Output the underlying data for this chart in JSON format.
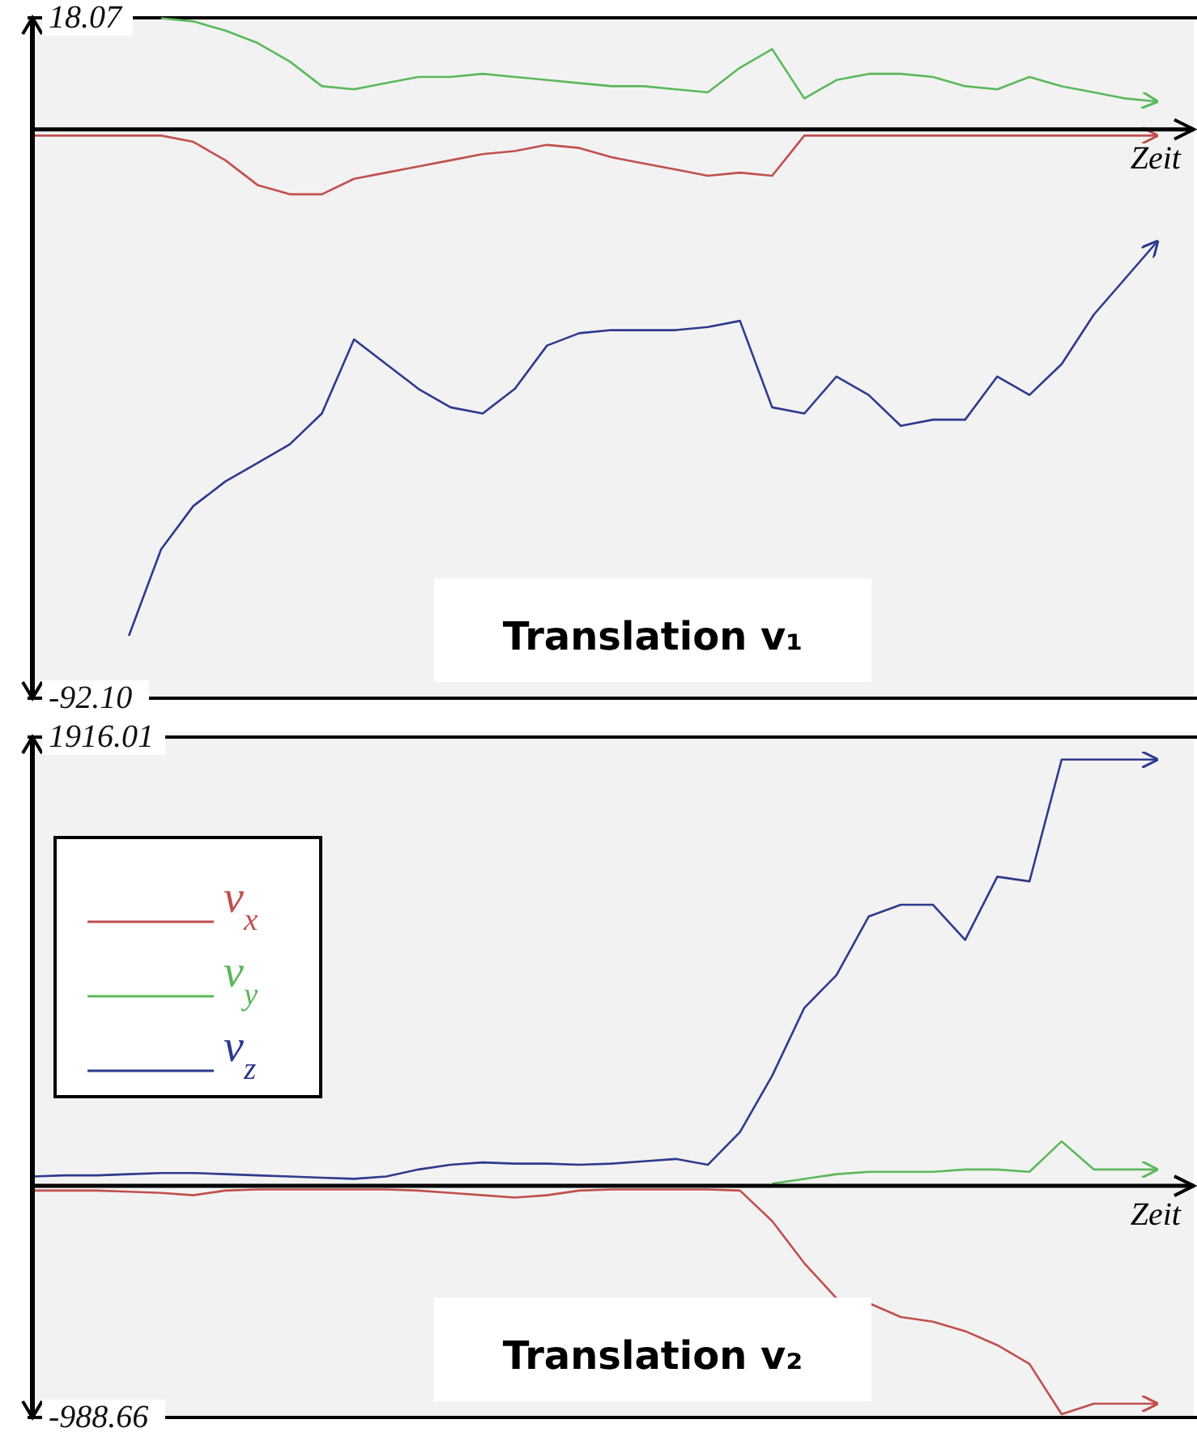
{
  "chart_data": [
    {
      "type": "line",
      "title": "Translation v₁",
      "xlabel": "Zeit",
      "categories": [
        null,
        null,
        null,
        null,
        null,
        null,
        null,
        null,
        null,
        null,
        null,
        null,
        null,
        null,
        null,
        null,
        null,
        null,
        null,
        null,
        null,
        null,
        null,
        null,
        null,
        null,
        null,
        null,
        null,
        null,
        null,
        null,
        null,
        null,
        null,
        null
      ],
      "ylim": [
        -92.1,
        18.07
      ],
      "yticks": [
        18.07,
        {
          "value": -92.1,
          "label": "-92.10"
        }
      ],
      "tick_labels": "y",
      "grid": false,
      "line_style": "solid",
      "marker": "none",
      "ref_lines": [
        {
          "axis": "y",
          "value": 0,
          "color": "#000000"
        }
      ],
      "series": [
        {
          "color": "#c0504d",
          "values": [
            -1,
            -1,
            -1,
            -1,
            -1,
            -2,
            -5,
            -9,
            -10.5,
            -10.5,
            -8,
            -7,
            -6,
            -5,
            -4,
            -3.5,
            -2.5,
            -3,
            -4.5,
            -5.5,
            -6.5,
            -7.5,
            -7,
            -7.5,
            -1,
            -1,
            -1,
            -1,
            -1,
            -1,
            -1,
            -1,
            -1,
            -1,
            -1,
            -1
          ]
        },
        {
          "color": "#5cb85c",
          "values": [
            null,
            null,
            null,
            null,
            18,
            17.5,
            16,
            14,
            11,
            7,
            6.5,
            7.5,
            8.5,
            8.5,
            9,
            8.5,
            8,
            7.5,
            7,
            7,
            6.5,
            6,
            10,
            13,
            5,
            8,
            9,
            9,
            8.5,
            7,
            6.5,
            8.5,
            7,
            6,
            5,
            4.5
          ]
        },
        {
          "color": "#2e3a8c",
          "values": [
            null,
            null,
            null,
            -82,
            -68,
            -61,
            -57,
            -54,
            -51,
            -46,
            -34,
            -38,
            -42,
            -45,
            -46,
            -42,
            -35,
            -33,
            -32.5,
            -32.5,
            -32.5,
            -32,
            -31,
            -45,
            -46,
            -40,
            -43,
            -48,
            -47,
            -47,
            -40,
            -43,
            -38,
            -30,
            -24,
            -18
          ]
        }
      ]
    },
    {
      "type": "line",
      "title": "Translation v₂",
      "xlabel": "Zeit",
      "categories": [
        null,
        null,
        null,
        null,
        null,
        null,
        null,
        null,
        null,
        null,
        null,
        null,
        null,
        null,
        null,
        null,
        null,
        null,
        null,
        null,
        null,
        null,
        null,
        null,
        null,
        null,
        null,
        null,
        null,
        null,
        null,
        null,
        null,
        null,
        null,
        null
      ],
      "ylim": [
        -988.66,
        1916.01
      ],
      "yticks": [
        1916.01,
        -988.66
      ],
      "tick_labels": "y",
      "grid": false,
      "line_style": "solid",
      "marker": "none",
      "legend": "top left",
      "ref_lines": [
        {
          "axis": "y",
          "value": 0,
          "color": "#000000"
        }
      ],
      "series": [
        {
          "name": "v$_{x}$",
          "color": "#c0504d",
          "values": [
            -20,
            -20,
            -20,
            -25,
            -30,
            -40,
            -20,
            -15,
            -15,
            -15,
            -15,
            -15,
            -20,
            -30,
            -40,
            -50,
            -40,
            -20,
            -15,
            -15,
            -15,
            -15,
            -20,
            -150,
            -330,
            -480,
            -500,
            -560,
            -580,
            -620,
            -680,
            -760,
            -975,
            -930,
            -930,
            -930
          ]
        },
        {
          "name": "v$_{y}$",
          "color": "#5cb85c",
          "values": [
            null,
            null,
            null,
            null,
            null,
            null,
            null,
            null,
            null,
            null,
            null,
            null,
            null,
            null,
            null,
            null,
            null,
            null,
            null,
            null,
            null,
            null,
            null,
            10,
            30,
            50,
            60,
            60,
            60,
            70,
            70,
            60,
            190,
            70,
            70,
            70
          ]
        },
        {
          "name": "v$_{z}$",
          "color": "#2e3a8c",
          "values": [
            40,
            45,
            45,
            50,
            55,
            55,
            50,
            45,
            40,
            35,
            30,
            40,
            70,
            90,
            100,
            95,
            95,
            90,
            95,
            105,
            115,
            90,
            230,
            470,
            760,
            900,
            1150,
            1200,
            1200,
            1050,
            1320,
            1300,
            1820,
            1820,
            1820,
            1820
          ]
        }
      ]
    }
  ]
}
